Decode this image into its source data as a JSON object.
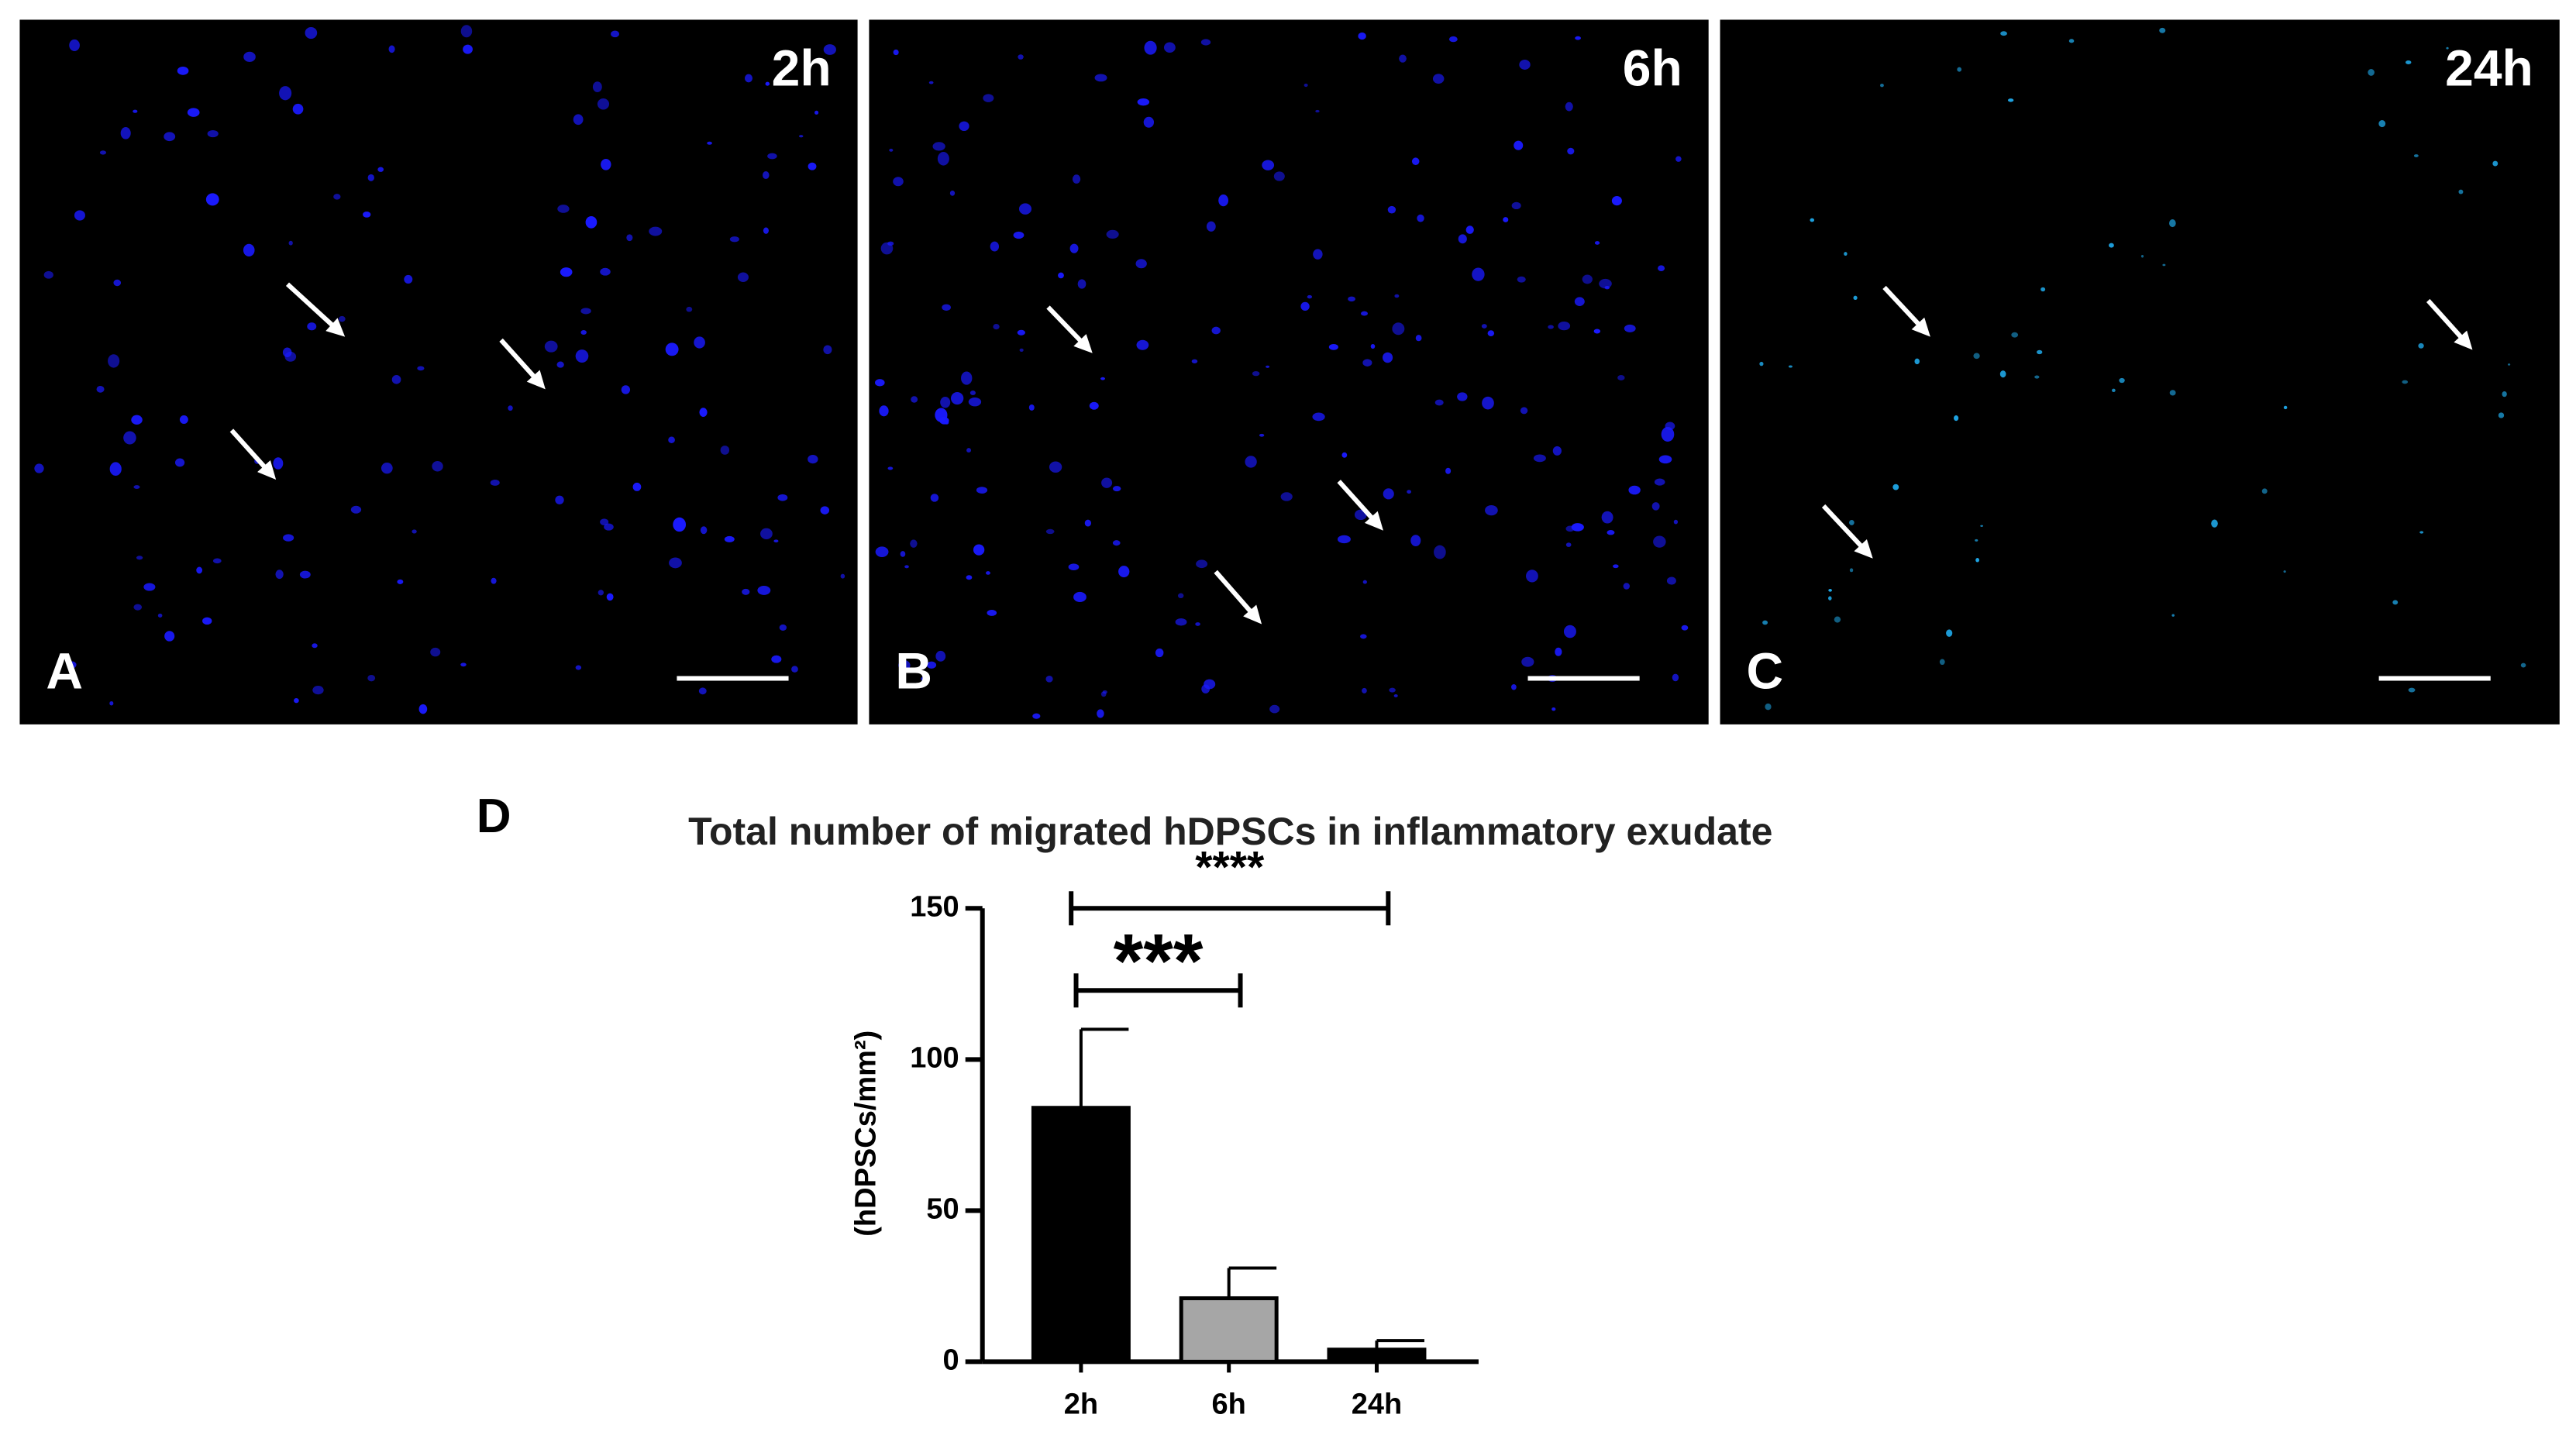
{
  "panels": [
    {
      "letter": "A",
      "time": "2h"
    },
    {
      "letter": "B",
      "time": "6h"
    },
    {
      "letter": "C",
      "time": "24h"
    }
  ],
  "chart_data": {
    "type": "bar",
    "panel_letter": "D",
    "title": "Total number of migrated hDPSCs in inflammatory exudate",
    "y_label": "(hDPSCs/mm²)",
    "categories": [
      "2h",
      "6h",
      "24h"
    ],
    "values": [
      84,
      21,
      4
    ],
    "errors": [
      26,
      10,
      3
    ],
    "colors": [
      "#000000",
      "#a6a6a6",
      "#000000"
    ],
    "ylim": [
      0,
      150
    ],
    "yticks": [
      0,
      50,
      100,
      150
    ],
    "annotations": [
      "***",
      "****"
    ]
  }
}
